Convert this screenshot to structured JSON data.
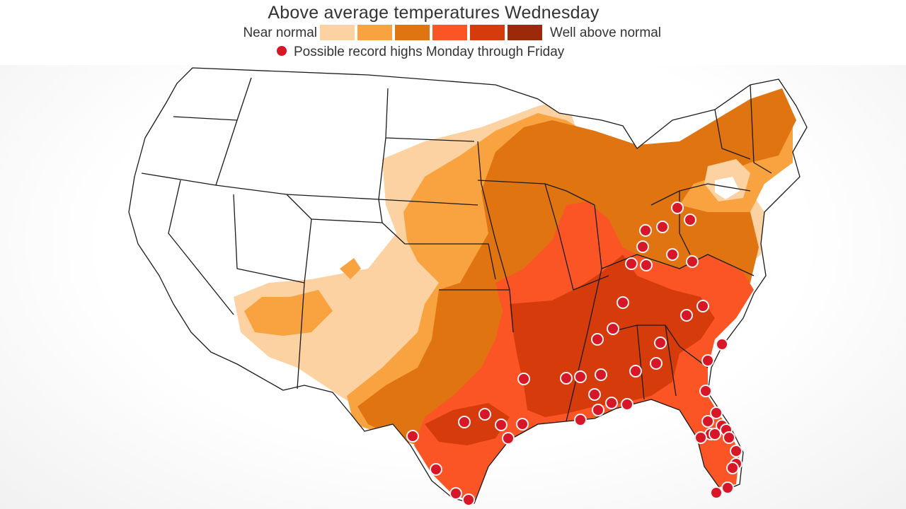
{
  "title": "Above average temperatures Wednesday",
  "legend": {
    "low_label": "Near normal",
    "high_label": "Well above normal",
    "swatches": [
      {
        "name": "anomaly-level-1",
        "color": "#fdd2a2"
      },
      {
        "name": "anomaly-level-2",
        "color": "#f8a33f"
      },
      {
        "name": "anomaly-level-3",
        "color": "#e07410"
      },
      {
        "name": "anomaly-level-4",
        "color": "#fb5525"
      },
      {
        "name": "anomaly-level-5",
        "color": "#d63c0b"
      },
      {
        "name": "anomaly-level-6",
        "color": "#9c2a0a"
      }
    ],
    "record_label": "Possible record highs Monday through Friday",
    "record_color": "#d71628"
  },
  "colors": {
    "land": "#ffffff",
    "border": "#1a1a1a",
    "water": "#ffffff",
    "dot_stroke": "#f2f2f2"
  },
  "markers": {
    "shape": "circle",
    "meaning": "possible record high",
    "count": 60
  }
}
